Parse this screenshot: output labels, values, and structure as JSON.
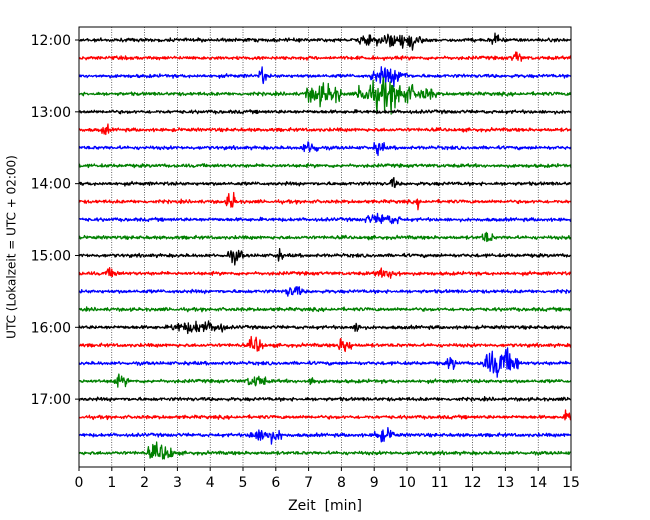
{
  "chart_data": {
    "type": "line",
    "xlabel": "Zeit  [min]",
    "ylabel": "UTC (Lokalzeit = UTC + 02:00)",
    "xlim": [
      0,
      15
    ],
    "x_ticks": [
      "0",
      "1",
      "2",
      "3",
      "4",
      "5",
      "6",
      "7",
      "8",
      "9",
      "10",
      "11",
      "12",
      "13",
      "14",
      "15"
    ],
    "y_tick_labels": [
      "12:00",
      "13:00",
      "14:00",
      "15:00",
      "16:00",
      "17:00"
    ],
    "grid": "vertical dotted lines at each minute",
    "colors": [
      "#000000",
      "#ff0000",
      "#0000ff",
      "#008000"
    ],
    "traces_start": "12:00",
    "traces_end": "17:45",
    "trace_interval_minutes": 15,
    "series": [
      {
        "label": "12:00",
        "color": "#000000",
        "events": [
          [
            8.5,
            10.5,
            0.8
          ],
          [
            12.6,
            12.8,
            1.2
          ],
          [
            9.7,
            10.3,
            1.5
          ]
        ]
      },
      {
        "label": "12:15",
        "color": "#ff0000",
        "events": [
          [
            13.2,
            13.5,
            0.9
          ]
        ]
      },
      {
        "label": "12:30",
        "color": "#0000ff",
        "events": [
          [
            5.5,
            5.7,
            1.3
          ],
          [
            8.9,
            10.0,
            1.2
          ]
        ]
      },
      {
        "label": "12:45",
        "color": "#008000",
        "events": [
          [
            6.9,
            8.0,
            1.6
          ],
          [
            8.5,
            10.2,
            2.2
          ],
          [
            10.2,
            10.9,
            0.8
          ]
        ]
      },
      {
        "label": "13:00",
        "color": "#000000",
        "events": []
      },
      {
        "label": "13:15",
        "color": "#ff0000",
        "events": [
          [
            0.7,
            0.9,
            0.8
          ]
        ]
      },
      {
        "label": "13:30",
        "color": "#0000ff",
        "events": [
          [
            6.8,
            7.3,
            0.9
          ],
          [
            9.0,
            9.3,
            1.0
          ]
        ]
      },
      {
        "label": "13:45",
        "color": "#008000",
        "events": []
      },
      {
        "label": "14:00",
        "color": "#000000",
        "events": [
          [
            9.5,
            9.7,
            0.8
          ]
        ]
      },
      {
        "label": "14:15",
        "color": "#ff0000",
        "events": [
          [
            4.5,
            4.8,
            1.5
          ],
          [
            10.3,
            10.4,
            0.9
          ]
        ]
      },
      {
        "label": "14:30",
        "color": "#0000ff",
        "events": [
          [
            8.7,
            9.8,
            0.7
          ]
        ]
      },
      {
        "label": "14:45",
        "color": "#008000",
        "events": [
          [
            12.3,
            12.6,
            0.9
          ]
        ]
      },
      {
        "label": "15:00",
        "color": "#000000",
        "events": [
          [
            4.5,
            5.0,
            0.9
          ],
          [
            6.0,
            6.2,
            0.8
          ]
        ]
      },
      {
        "label": "15:15",
        "color": "#ff0000",
        "events": [
          [
            0.8,
            1.2,
            0.6
          ],
          [
            9.0,
            9.8,
            0.6
          ]
        ]
      },
      {
        "label": "15:30",
        "color": "#0000ff",
        "events": [
          [
            6.3,
            6.8,
            0.8
          ]
        ]
      },
      {
        "label": "15:45",
        "color": "#008000",
        "events": []
      },
      {
        "label": "16:00",
        "color": "#000000",
        "events": [
          [
            2.8,
            4.5,
            0.8
          ],
          [
            8.4,
            8.6,
            1.0
          ]
        ]
      },
      {
        "label": "16:15",
        "color": "#ff0000",
        "events": [
          [
            5.2,
            5.6,
            1.3
          ],
          [
            7.9,
            8.3,
            1.2
          ]
        ]
      },
      {
        "label": "16:30",
        "color": "#0000ff",
        "events": [
          [
            11.2,
            11.5,
            1.0
          ],
          [
            12.3,
            13.4,
            2.2
          ],
          [
            12.8,
            13.0,
            1.6
          ]
        ]
      },
      {
        "label": "16:45",
        "color": "#008000",
        "events": [
          [
            1.0,
            1.5,
            0.7
          ],
          [
            5.1,
            5.7,
            0.8
          ],
          [
            7.0,
            7.2,
            0.8
          ]
        ]
      },
      {
        "label": "17:00",
        "color": "#000000",
        "events": []
      },
      {
        "label": "17:15",
        "color": "#ff0000",
        "events": [
          [
            14.8,
            15.0,
            1.1
          ]
        ]
      },
      {
        "label": "17:30",
        "color": "#0000ff",
        "events": [
          [
            5.2,
            6.2,
            1.0
          ],
          [
            9.0,
            9.6,
            0.9
          ]
        ]
      },
      {
        "label": "17:45",
        "color": "#008000",
        "events": [
          [
            2.1,
            2.9,
            1.3
          ]
        ]
      }
    ]
  }
}
